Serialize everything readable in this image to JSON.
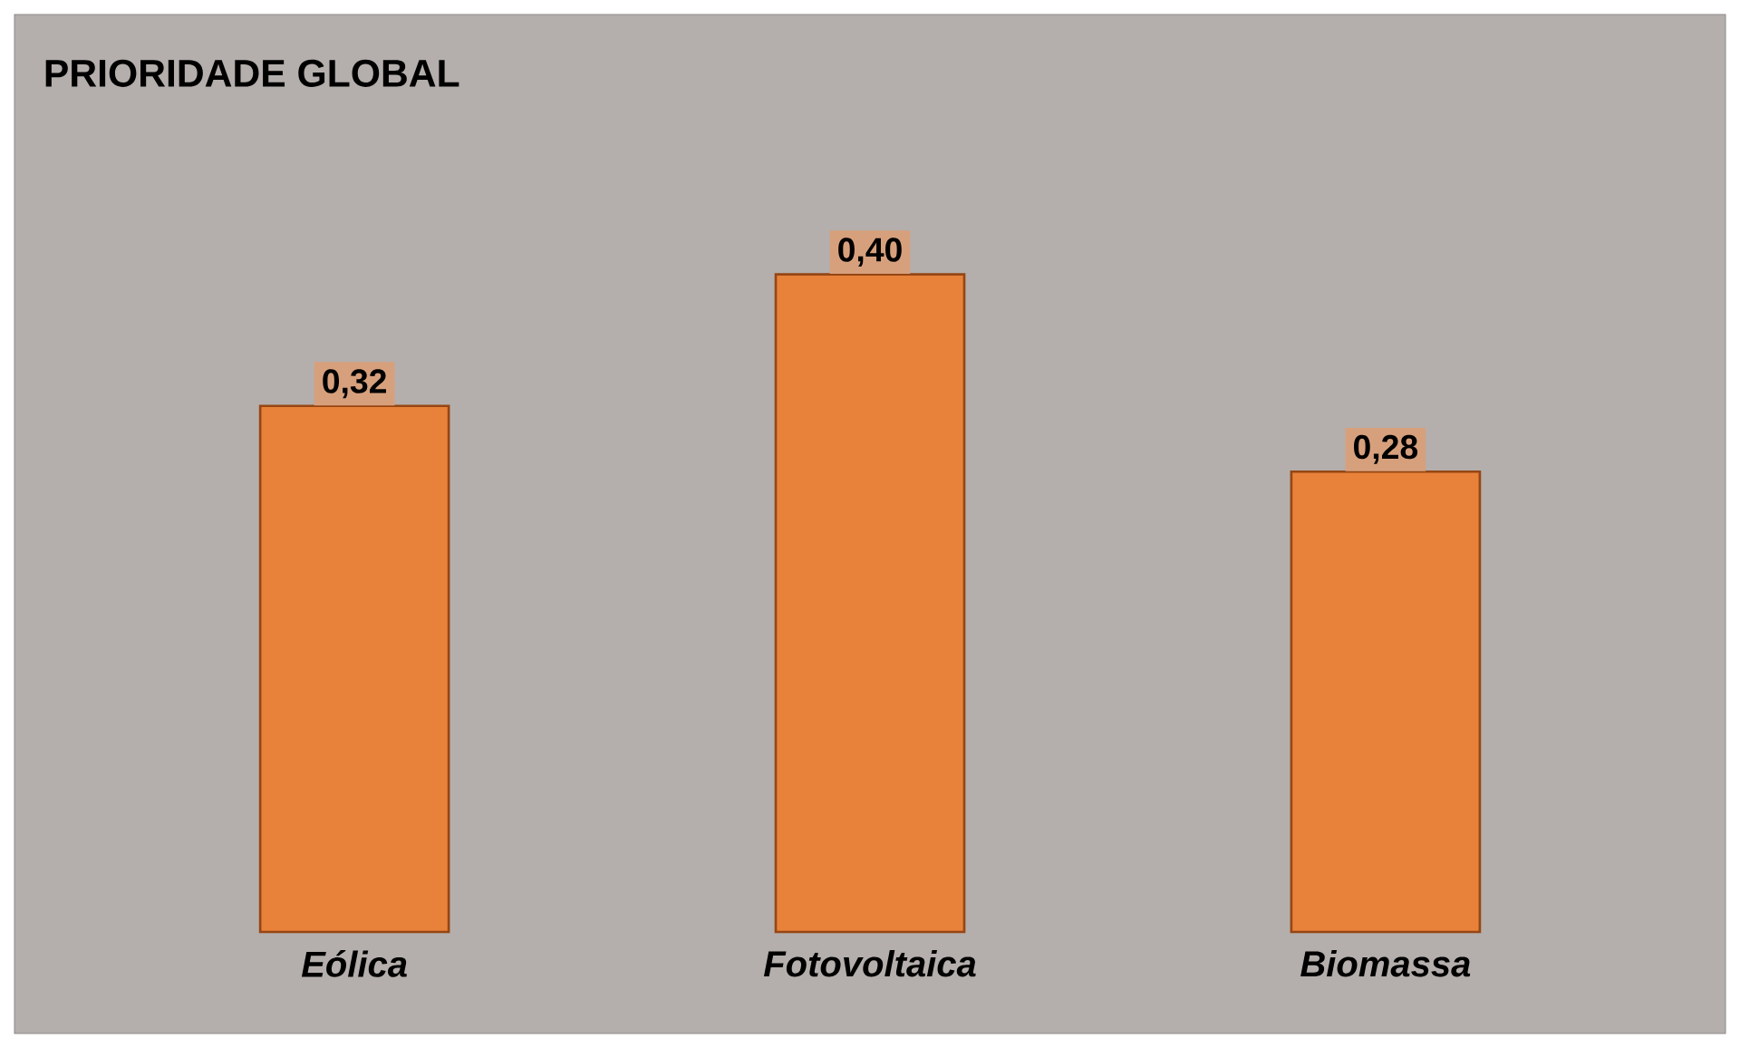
{
  "chart_data": {
    "type": "bar",
    "title": "PRIORIDADE GLOBAL",
    "categories": [
      "Eólica",
      "Fotovoltaica",
      "Biomassa"
    ],
    "values": [
      0.32,
      0.4,
      0.28
    ],
    "value_labels": [
      "0,32",
      "0,40",
      "0,28"
    ],
    "color": "#e8823a"
  }
}
